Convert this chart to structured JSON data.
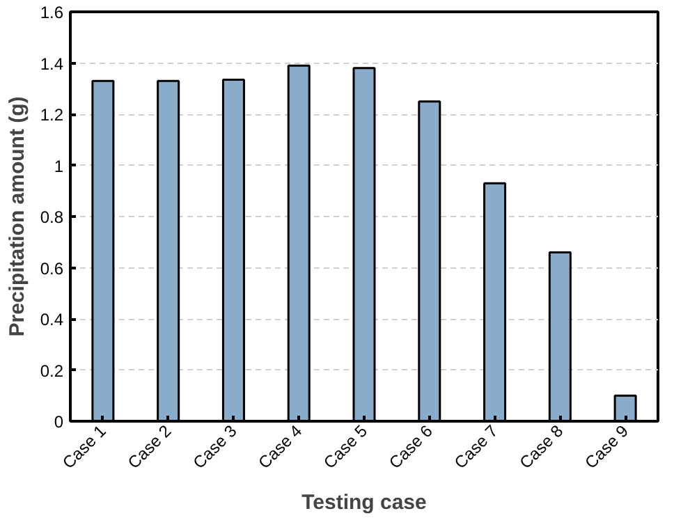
{
  "chart_data": {
    "type": "bar",
    "xlabel": "Testing case",
    "ylabel": "Precipitation amount (g)",
    "categories": [
      "Case 1",
      "Case 2",
      "Case 3",
      "Case 4",
      "Case 5",
      "Case 6",
      "Case 7",
      "Case 8",
      "Case 9"
    ],
    "values": [
      1.33,
      1.33,
      1.335,
      1.39,
      1.38,
      1.25,
      0.93,
      0.66,
      0.1
    ],
    "color": "#8aaccb",
    "ylim": [
      0,
      1.6
    ],
    "yticks": [
      0,
      {
        "value": 0.2,
        "label": "0.2"
      },
      {
        "value": 0.4,
        "label": "0.4"
      },
      {
        "value": 0.6,
        "label": "0.6"
      },
      {
        "value": 0.8,
        "label": "0.8"
      },
      1,
      {
        "value": 1.2,
        "label": "1.2"
      },
      {
        "value": 1.4,
        "label": "1.4"
      },
      {
        "value": 1.6,
        "label": "1.6"
      }
    ],
    "grid": "y"
  }
}
